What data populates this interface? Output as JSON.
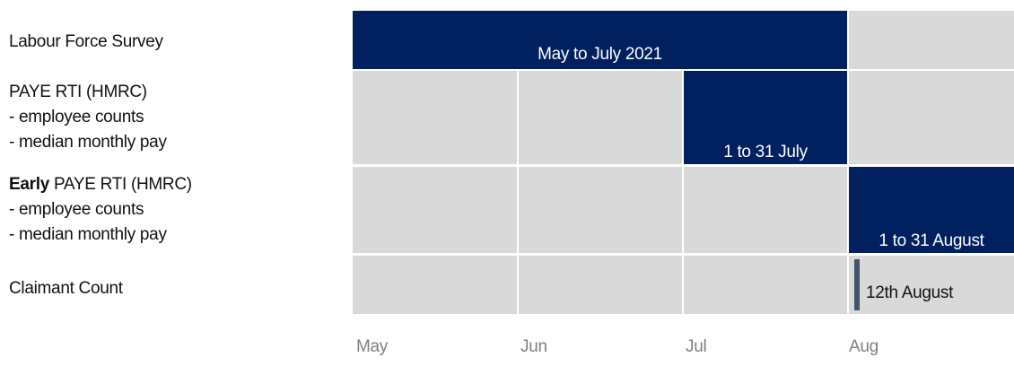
{
  "rows": [
    {
      "lines": [
        "Labour Force Survey"
      ],
      "period": "May to July 2021"
    },
    {
      "lines": [
        "PAYE RTI (HMRC)",
        "- employee counts",
        "- median monthly pay"
      ],
      "period": "1 to 31 July"
    },
    {
      "bold": "Early",
      "lines": [
        "PAYE RTI (HMRC)",
        "- employee counts",
        "- median monthly pay"
      ],
      "period": "1 to 31 August"
    },
    {
      "lines": [
        "Claimant Count"
      ],
      "period": "12th August"
    }
  ],
  "months": [
    "May",
    "Jun",
    "Jul",
    "Aug"
  ]
}
